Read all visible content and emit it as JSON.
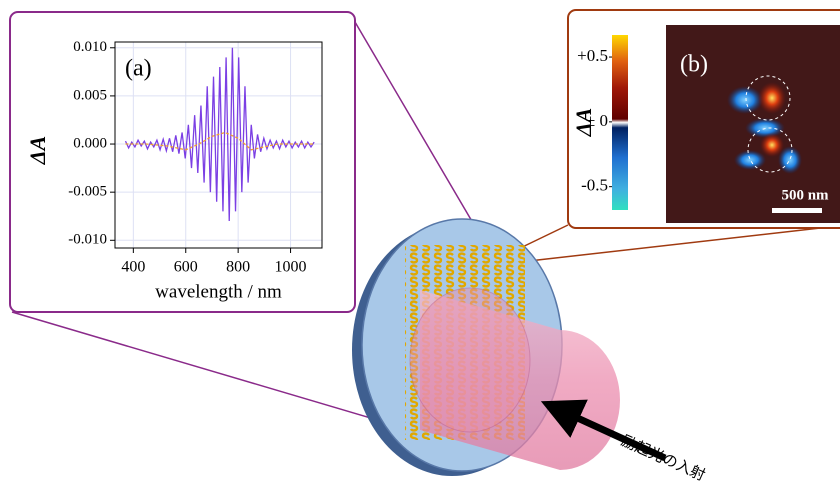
{
  "chart_data": [
    {
      "type": "line",
      "label": "(a)",
      "y_label": "ΔA",
      "x_label": "wavelength / nm",
      "xlim": [
        330,
        1120
      ],
      "ylim": [
        -0.0108,
        0.0106
      ],
      "xticks": [
        400,
        600,
        800,
        1000
      ],
      "yticks": [
        {
          "value": 0.01,
          "label": "0.010"
        },
        {
          "value": 0.005,
          "label": "0.005"
        },
        {
          "value": 0,
          "label": "0.000"
        },
        {
          "value": -0.005,
          "label": "-0.005"
        },
        {
          "value": -0.01,
          "label": "-0.010"
        }
      ],
      "grid": true,
      "series": [
        {
          "color": "#7b3fe4",
          "x": [
            370,
            382,
            394,
            406,
            418,
            430,
            442,
            454,
            466,
            478,
            490,
            502,
            514,
            526,
            538,
            550,
            562,
            574,
            586,
            598,
            610,
            622,
            634,
            646,
            658,
            670,
            682,
            694,
            706,
            718,
            730,
            742,
            754,
            766,
            778,
            790,
            802,
            814,
            826,
            838,
            850,
            862,
            874,
            886,
            898,
            910,
            922,
            934,
            946,
            958,
            970,
            982,
            994,
            1006,
            1018,
            1030,
            1042,
            1054,
            1066,
            1078,
            1090
          ],
          "values": [
            0.0003,
            -0.0004,
            0.0002,
            -0.0003,
            0.0004,
            -0.0002,
            0.0003,
            -0.0005,
            0.0002,
            -0.0003,
            0.0004,
            -0.0006,
            0.0005,
            -0.0007,
            0.0006,
            -0.0008,
            0.0009,
            -0.001,
            0.0012,
            -0.0015,
            0.002,
            -0.0025,
            0.003,
            -0.003,
            0.004,
            -0.004,
            0.006,
            -0.005,
            0.007,
            -0.006,
            0.008,
            -0.007,
            0.009,
            -0.008,
            0.01,
            -0.007,
            0.009,
            -0.005,
            0.006,
            -0.004,
            0.002,
            -0.0015,
            0.001,
            -0.0008,
            0.0006,
            -0.0005,
            0.0004,
            -0.0004,
            0.0003,
            -0.0005,
            0.0004,
            -0.0003,
            0.0003,
            -0.0004,
            0.0002,
            -0.0003,
            0.0003,
            -0.0004,
            0.0002,
            -0.0003,
            0.0002
          ]
        },
        {
          "color": "#f0a030",
          "dashed": true,
          "x": [
            370,
            450,
            530,
            600,
            650,
            700,
            750,
            800,
            850,
            900,
            950,
            1000,
            1090
          ],
          "values": [
            0,
            0,
            -0.0002,
            -0.0006,
            0,
            0.0008,
            0.0012,
            0.0006,
            -0.0006,
            -0.0003,
            0,
            0,
            0
          ]
        }
      ]
    },
    {
      "type": "heatmap",
      "label": "(b)",
      "y_label": "ΔA",
      "scale_bar": "500 nm",
      "ylim": [
        -0.68,
        0.67
      ],
      "yticks": [
        {
          "value": 0.5,
          "label": "+0.5"
        },
        {
          "value": 0,
          "label": "± 0"
        },
        {
          "value": -0.5,
          "label": "-0.5"
        }
      ]
    }
  ],
  "diagram": {
    "caption": "励起光の入射"
  }
}
